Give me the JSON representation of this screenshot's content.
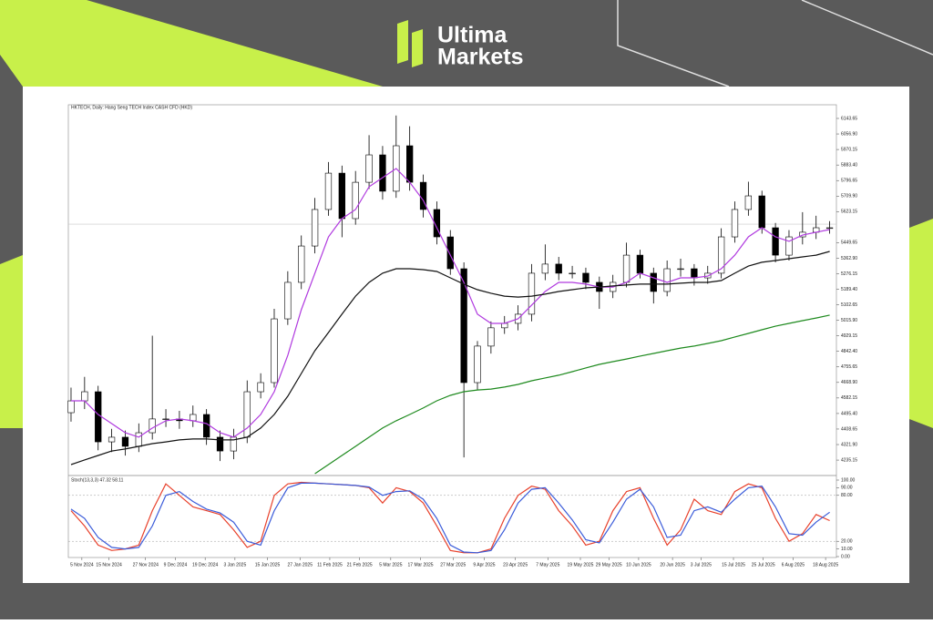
{
  "brand": {
    "line1": "Ultima",
    "line2": "Markets"
  },
  "chart_data": [
    {
      "type": "candlestick",
      "title": "HKTECH, Daily:  Hang Seng TECH Index CASH CFD (HKD)",
      "xlim": [
        -0.2,
        56.5
      ],
      "xticks": [
        {
          "value": 0.8,
          "label": "5 Nov 2024"
        },
        {
          "value": 2.8,
          "label": "15 Nov 2024"
        },
        {
          "value": 5.5,
          "label": "27 Nov 2024"
        },
        {
          "value": 7.7,
          "label": "9 Dec 2024"
        },
        {
          "value": 9.9,
          "label": "19 Dec 2024"
        },
        {
          "value": 12.1,
          "label": "3 Jan 2025"
        },
        {
          "value": 14.5,
          "label": "15 Jan 2025"
        },
        {
          "value": 16.9,
          "label": "27 Jan 2025"
        },
        {
          "value": 19.1,
          "label": "11 Feb 2025"
        },
        {
          "value": 21.3,
          "label": "21 Feb 2025"
        },
        {
          "value": 23.6,
          "label": "5 Mar 2025"
        },
        {
          "value": 25.8,
          "label": "17 Mar 2025"
        },
        {
          "value": 28.2,
          "label": "27 Mar 2025"
        },
        {
          "value": 30.5,
          "label": "9 Apr 2025"
        },
        {
          "value": 32.8,
          "label": "23 Apr 2025"
        },
        {
          "value": 35.2,
          "label": "7 May 2025"
        },
        {
          "value": 37.6,
          "label": "19 May 2025"
        },
        {
          "value": 39.7,
          "label": "29 May 2025"
        },
        {
          "value": 41.9,
          "label": "10 Jun 2025"
        },
        {
          "value": 44.4,
          "label": "20 Jun 2025"
        },
        {
          "value": 46.5,
          "label": "3 Jul 2025"
        },
        {
          "value": 48.9,
          "label": "15 Jul 2025"
        },
        {
          "value": 51.1,
          "label": "25 Jul 2025"
        },
        {
          "value": 53.3,
          "label": "6 Aug 2025"
        },
        {
          "value": 55.7,
          "label": "18 Aug 2025"
        }
      ],
      "ylim": [
        4149,
        6220
      ],
      "yticks": [
        {
          "value": 6143.65,
          "label": "6143.65"
        },
        {
          "value": 6056.9,
          "label": "6056.90"
        },
        {
          "value": 5970.15,
          "label": "5970.15"
        },
        {
          "value": 5883.4,
          "label": "5883.40"
        },
        {
          "value": 5796.65,
          "label": "5796.65"
        },
        {
          "value": 5709.9,
          "label": "5709.90"
        },
        {
          "value": 5623.15,
          "label": "5623.15"
        },
        {
          "value": 5449.65,
          "label": "5449.65"
        },
        {
          "value": 5362.9,
          "label": "5362.90"
        },
        {
          "value": 5276.15,
          "label": "5276.15"
        },
        {
          "value": 5189.4,
          "label": "5189.40"
        },
        {
          "value": 5102.65,
          "label": "5102.65"
        },
        {
          "value": 5015.9,
          "label": "5015.90"
        },
        {
          "value": 4929.15,
          "label": "4929.15"
        },
        {
          "value": 4842.4,
          "label": "4842.40"
        },
        {
          "value": 4755.65,
          "label": "4755.65"
        },
        {
          "value": 4668.9,
          "label": "4668.90"
        },
        {
          "value": 4582.15,
          "label": "4582.15"
        },
        {
          "value": 4495.4,
          "label": "4495.40"
        },
        {
          "value": 4408.65,
          "label": "4408.65"
        },
        {
          "value": 4321.9,
          "label": "4321.90"
        },
        {
          "value": 4235.15,
          "label": "4235.15"
        }
      ],
      "open": [
        4500,
        4566,
        4617,
        4337,
        4363,
        4312,
        4388,
        4465,
        4465,
        4455,
        4490,
        4363,
        4286,
        4363,
        4617,
        4668,
        5024,
        5228,
        5431,
        5635,
        5838,
        5584,
        5787,
        5940,
        5737,
        5991,
        5787,
        5635,
        5482,
        5304,
        4668,
        4872,
        4974,
        4999,
        5050,
        5279,
        5330,
        5279,
        5279,
        5228,
        5177,
        5228,
        5380,
        5279,
        5177,
        5304,
        5304,
        5253,
        5279,
        5482,
        5635,
        5711,
        5533,
        5380,
        5482,
        5508,
        5533
      ],
      "high": [
        4640,
        4700,
        4650,
        4410,
        4400,
        4440,
        4930,
        4520,
        4510,
        4540,
        4520,
        4400,
        4410,
        4680,
        4720,
        5080,
        5290,
        5490,
        5700,
        5900,
        5880,
        5850,
        6050,
        5990,
        6160,
        6100,
        5830,
        5680,
        5520,
        5340,
        4900,
        5010,
        5040,
        5100,
        5330,
        5440,
        5370,
        5320,
        5310,
        5260,
        5270,
        5450,
        5410,
        5310,
        5350,
        5360,
        5330,
        5320,
        5530,
        5680,
        5790,
        5740,
        5560,
        5520,
        5620,
        5600,
        5570
      ],
      "low": [
        4450,
        4520,
        4290,
        4280,
        4260,
        4280,
        4350,
        4420,
        4410,
        4420,
        4320,
        4230,
        4240,
        4330,
        4580,
        4640,
        4990,
        5190,
        5390,
        5600,
        5480,
        5550,
        5750,
        5690,
        5700,
        5740,
        5590,
        5440,
        5270,
        4250,
        4630,
        4830,
        4940,
        4960,
        5010,
        5240,
        5240,
        5250,
        5190,
        5080,
        5140,
        5200,
        5250,
        5110,
        5150,
        5260,
        5210,
        5220,
        5250,
        5450,
        5600,
        5500,
        5340,
        5350,
        5440,
        5470,
        5500
      ],
      "close": [
        4566,
        4617,
        4337,
        4363,
        4312,
        4388,
        4465,
        4465,
        4455,
        4490,
        4363,
        4286,
        4363,
        4617,
        4668,
        5024,
        5228,
        5431,
        5635,
        5838,
        5584,
        5787,
        5940,
        5737,
        5991,
        5787,
        5635,
        5482,
        5304,
        4668,
        4872,
        4974,
        4999,
        5050,
        5279,
        5330,
        5279,
        5279,
        5228,
        5177,
        5228,
        5380,
        5279,
        5177,
        5304,
        5304,
        5253,
        5279,
        5482,
        5635,
        5711,
        5533,
        5380,
        5482,
        5508,
        5533,
        5533
      ],
      "up_color": "#ffffff",
      "down_color": "#000000",
      "price_line": 5553,
      "price_line_color": "#c8c8c8",
      "series": [
        {
          "color": "#b03adf",
          "values": [
            4566,
            4566,
            4490,
            4439,
            4388,
            4363,
            4414,
            4455,
            4465,
            4455,
            4439,
            4388,
            4363,
            4414,
            4490,
            4617,
            4821,
            5075,
            5279,
            5482,
            5584,
            5635,
            5762,
            5813,
            5864,
            5787,
            5686,
            5533,
            5380,
            5228,
            5050,
            4999,
            4999,
            5024,
            5101,
            5177,
            5228,
            5228,
            5218,
            5202,
            5202,
            5228,
            5279,
            5253,
            5228,
            5253,
            5253,
            5263,
            5304,
            5380,
            5482,
            5533,
            5482,
            5457,
            5492,
            5508,
            5523
          ]
        },
        {
          "color": "#111111",
          "values": [
            4210,
            4236,
            4261,
            4286,
            4297,
            4312,
            4327,
            4337,
            4348,
            4353,
            4353,
            4348,
            4348,
            4363,
            4414,
            4490,
            4592,
            4719,
            4846,
            4948,
            5050,
            5151,
            5228,
            5279,
            5304,
            5304,
            5299,
            5289,
            5253,
            5218,
            5187,
            5167,
            5151,
            5146,
            5151,
            5162,
            5177,
            5187,
            5197,
            5202,
            5208,
            5213,
            5218,
            5218,
            5218,
            5223,
            5228,
            5228,
            5238,
            5279,
            5319,
            5340,
            5350,
            5360,
            5370,
            5380,
            5401
          ]
        },
        {
          "color": "#1e8a1e",
          "values": [
            null,
            null,
            null,
            null,
            null,
            null,
            null,
            null,
            null,
            null,
            null,
            null,
            null,
            null,
            null,
            null,
            null,
            null,
            4159,
            4210,
            4261,
            4312,
            4363,
            4414,
            4455,
            4490,
            4526,
            4566,
            4597,
            4617,
            4627,
            4632,
            4643,
            4658,
            4678,
            4694,
            4709,
            4729,
            4750,
            4770,
            4785,
            4800,
            4816,
            4831,
            4846,
            4861,
            4872,
            4887,
            4902,
            4923,
            4943,
            4963,
            4983,
            4999,
            5014,
            5029,
            5045
          ]
        }
      ]
    },
    {
      "type": "line",
      "title": "Stoch(13,3,3) 47.32 58.11",
      "xlim": [
        -0.2,
        56.5
      ],
      "ylim": [
        0,
        100
      ],
      "yticks": [
        {
          "value": 100,
          "label": "100.00"
        },
        {
          "value": 90,
          "label": "90.00"
        },
        {
          "value": 80,
          "label": "80.00"
        },
        {
          "value": 20,
          "label": "20.00"
        },
        {
          "value": 10,
          "label": "10.00"
        },
        {
          "value": 0,
          "label": "0.00"
        }
      ],
      "levels": [
        80,
        20
      ],
      "series": [
        {
          "color": "#e8412c",
          "values": [
            60,
            40,
            15,
            8,
            10,
            15,
            60,
            95,
            80,
            65,
            60,
            55,
            35,
            12,
            20,
            80,
            95,
            97,
            96,
            95,
            94,
            93,
            90,
            70,
            90,
            85,
            70,
            40,
            8,
            5,
            5,
            10,
            50,
            80,
            92,
            88,
            60,
            40,
            15,
            20,
            60,
            85,
            90,
            50,
            15,
            35,
            75,
            60,
            55,
            85,
            95,
            90,
            50,
            20,
            30,
            55,
            47
          ]
        },
        {
          "color": "#3a5bd9",
          "values": [
            62,
            50,
            25,
            12,
            10,
            12,
            40,
            80,
            85,
            72,
            62,
            57,
            45,
            20,
            15,
            60,
            90,
            96,
            96,
            95,
            94,
            93,
            91,
            80,
            85,
            86,
            75,
            50,
            15,
            6,
            5,
            8,
            35,
            70,
            88,
            90,
            70,
            48,
            22,
            18,
            45,
            75,
            88,
            65,
            25,
            28,
            60,
            65,
            58,
            75,
            90,
            92,
            65,
            30,
            28,
            45,
            58
          ]
        }
      ]
    }
  ]
}
